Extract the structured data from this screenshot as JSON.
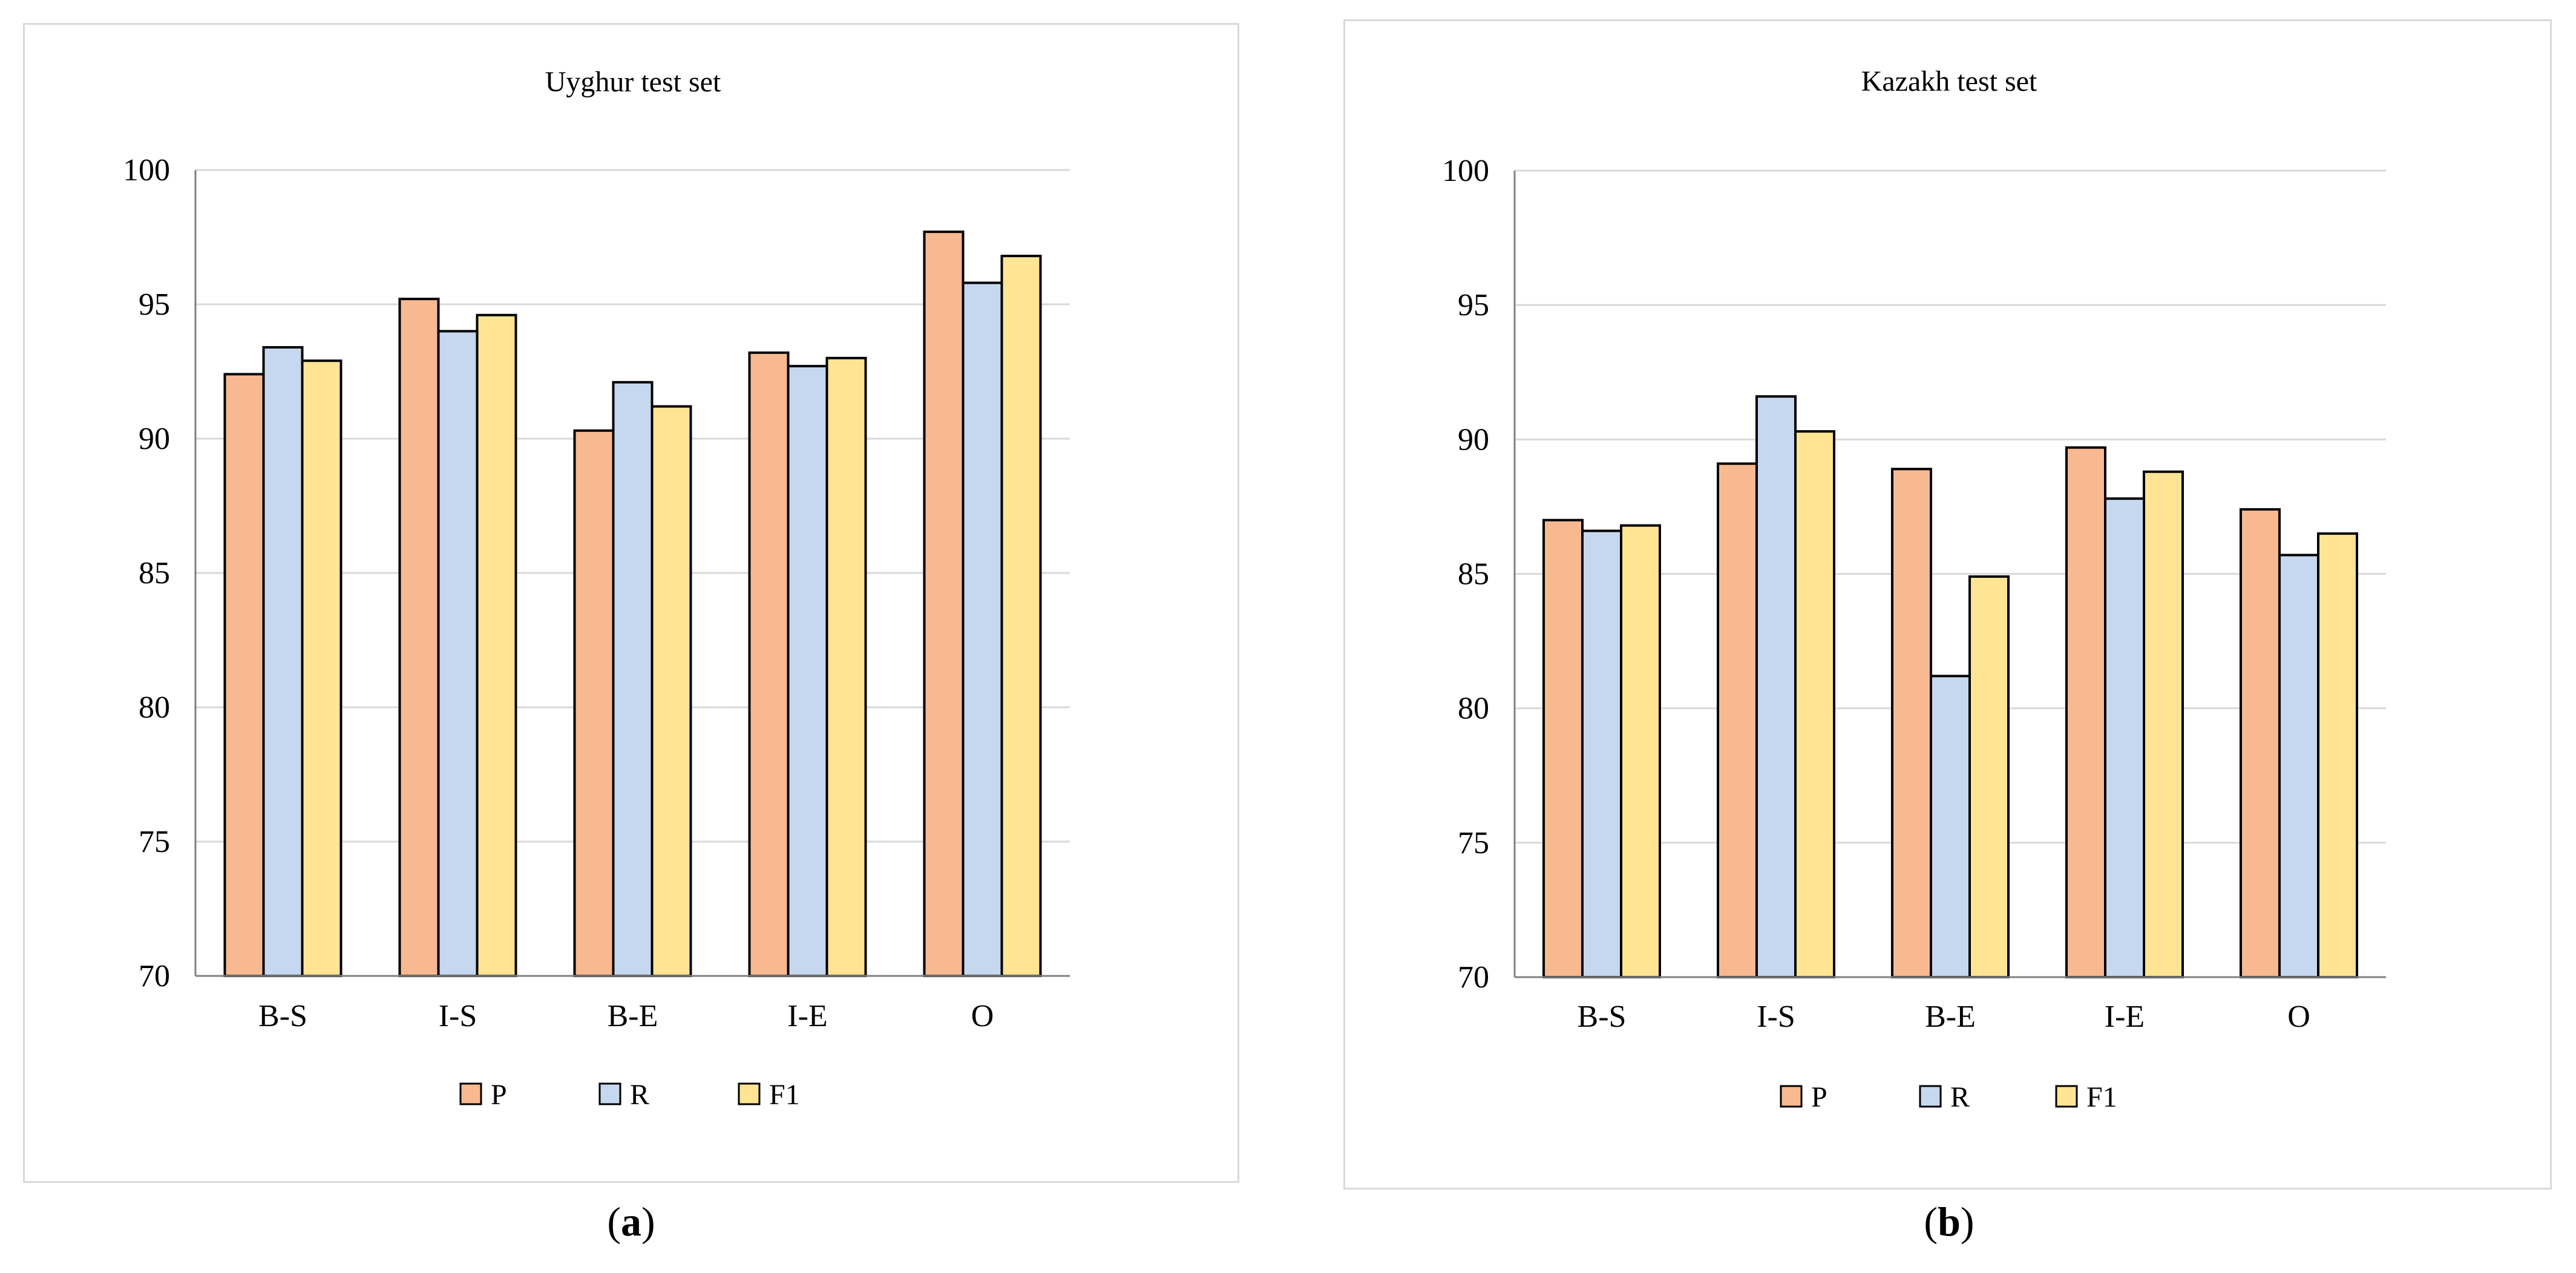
{
  "chart_data": [
    {
      "type": "bar",
      "panel": "a",
      "title": "Uyghur test set",
      "categories": [
        "B-S",
        "I-S",
        "B-E",
        "I-E",
        "O"
      ],
      "series": [
        {
          "name": "P",
          "color": "#F8B990",
          "values": [
            92.4,
            95.2,
            90.3,
            93.2,
            97.7
          ]
        },
        {
          "name": "R",
          "color": "#C6D8F0",
          "values": [
            93.4,
            94.0,
            92.1,
            92.7,
            95.8
          ]
        },
        {
          "name": "F1",
          "color": "#FFE494",
          "values": [
            92.9,
            94.6,
            91.2,
            93.0,
            96.8
          ]
        }
      ],
      "ylim": [
        70,
        100
      ],
      "yticks": [
        70,
        75,
        80,
        85,
        90,
        95,
        100
      ],
      "xlabel": "",
      "ylabel": "",
      "grid": true,
      "legend_position": "bottom"
    },
    {
      "type": "bar",
      "panel": "b",
      "title": "Kazakh test set",
      "categories": [
        "B-S",
        "I-S",
        "B-E",
        "I-E",
        "O"
      ],
      "series": [
        {
          "name": "P",
          "color": "#F8B990",
          "values": [
            87.0,
            89.1,
            88.9,
            89.7,
            87.4
          ]
        },
        {
          "name": "R",
          "color": "#C6D8F0",
          "values": [
            86.6,
            91.6,
            81.2,
            87.8,
            85.7
          ]
        },
        {
          "name": "F1",
          "color": "#FFE494",
          "values": [
            86.8,
            90.3,
            84.9,
            88.8,
            86.5
          ]
        }
      ],
      "ylim": [
        70,
        100
      ],
      "yticks": [
        70,
        75,
        80,
        85,
        90,
        95,
        100
      ],
      "xlabel": "",
      "ylabel": "",
      "grid": true,
      "legend_position": "bottom"
    }
  ],
  "captions": {
    "a_open": "(",
    "a_letter": "a",
    "a_close": ")",
    "b_open": "(",
    "b_letter": "b",
    "b_close": ")"
  },
  "colors": {
    "gridline": "#D9D9D9",
    "bar_outline": "#000000",
    "axis": "#808080"
  }
}
